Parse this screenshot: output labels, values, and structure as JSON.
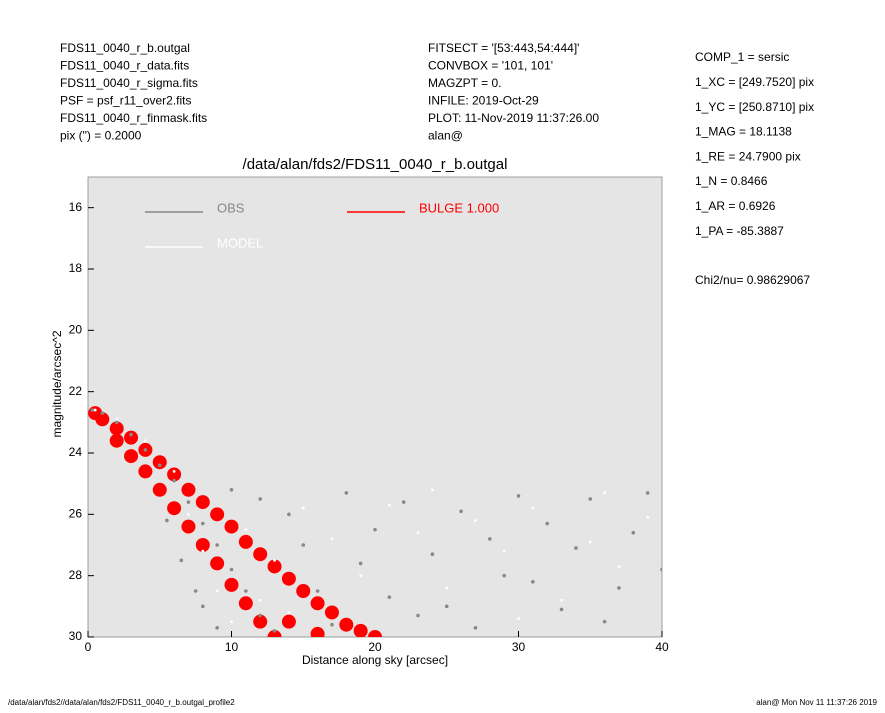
{
  "header": {
    "left": [
      "FDS11_0040_r_b.outgal",
      "FDS11_0040_r_data.fits",
      "FDS11_0040_r_sigma.fits",
      "PSF    = psf_r11_over2.fits",
      "FDS11_0040_r_finmask.fits",
      "pix (\") =  0.2000"
    ],
    "middle": [
      "FITSECT = '[53:443,54:444]'",
      "CONVBOX = '101, 101'",
      "MAGZPT  =              0.",
      "INFILE: 2019-Oct-29",
      "PLOT: 11-Nov-2019 11:37:26.00",
      "alan@"
    ],
    "right": [
      "COMP_1  = sersic",
      "1_XC    = [249.7520] pix",
      "1_YC    = [250.8710] pix",
      "1_MAG   = 18.1138",
      "1_RE    = 24.7900 pix",
      "1_N     = 0.8466",
      "1_AR    = 0.6926",
      "1_PA    = -85.3887"
    ],
    "chi2": "Chi2/nu=     0.98629067"
  },
  "footer": {
    "left": "/data/alan/fds2//data/alan/fds2/FDS11_0040_r_b.outgal_profile2",
    "right": "alan@  Mon Nov 11 11:37:26 2019"
  },
  "chart_data": {
    "type": "scatter",
    "title": "/data/alan/fds2/FDS11_0040_r_b.outgal",
    "x_label": "Distance along sky [arcsec]",
    "y_label": "magnitude/arcsec^2",
    "xlim": [
      0,
      40
    ],
    "ylim": [
      30,
      15
    ],
    "xticks": [
      0,
      10,
      20,
      30,
      40
    ],
    "yticks": [
      16,
      18,
      20,
      22,
      24,
      26,
      28,
      30
    ],
    "background": "#e5e5e5",
    "series": [
      {
        "name": "OBS",
        "color": "#888888",
        "x": [
          0.3,
          1,
          2,
          3,
          4,
          5,
          6,
          7,
          8,
          9,
          10,
          11,
          12,
          6.5,
          8,
          10,
          12,
          14,
          15,
          16,
          18,
          20,
          22,
          24,
          25,
          26,
          28,
          30,
          31,
          32,
          34,
          35,
          36,
          38,
          39,
          40,
          13,
          17,
          21,
          27,
          33,
          37,
          19,
          23,
          29,
          5.5,
          7.5,
          9
        ],
        "values": [
          22.6,
          22.7,
          23.0,
          23.4,
          23.9,
          24.4,
          24.9,
          25.6,
          26.3,
          27.0,
          27.8,
          28.5,
          29.3,
          27.5,
          29,
          25.2,
          25.5,
          26,
          27,
          28.5,
          25.3,
          26.5,
          25.6,
          27.3,
          29,
          25.9,
          26.8,
          25.4,
          28.2,
          26.3,
          27.1,
          25.5,
          29.5,
          26.6,
          25.3,
          27.8,
          29.8,
          29.6,
          28.7,
          29.7,
          29.1,
          28.4,
          27.6,
          29.3,
          28,
          26.2,
          28.5,
          29.7
        ]
      },
      {
        "name": "MODEL",
        "color": "#ffffff",
        "x": [
          0.5,
          2,
          4,
          6,
          7,
          8,
          9,
          10,
          11,
          13,
          15,
          17,
          19,
          21,
          23,
          25,
          27,
          29,
          31,
          33,
          35,
          37,
          39,
          12,
          14,
          24,
          30,
          36
        ],
        "values": [
          22.6,
          22.9,
          23.6,
          24.6,
          26,
          27.2,
          28.5,
          29.5,
          26.5,
          27.5,
          25.8,
          26.8,
          28,
          25.7,
          26.6,
          28.4,
          26.2,
          27.2,
          25.8,
          28.8,
          26.9,
          27.7,
          26.1,
          28.8,
          29.2,
          25.2,
          29.4,
          25.3
        ]
      },
      {
        "name": "BULGE  1.000",
        "color": "#ff0000",
        "x": [
          0.5,
          1,
          2,
          2,
          3,
          3,
          4,
          4,
          5,
          5,
          6,
          6,
          7,
          7,
          8,
          8,
          9,
          9,
          10,
          10,
          11,
          11,
          12,
          12,
          13,
          13,
          14,
          15,
          16,
          17,
          18,
          19,
          20,
          14,
          16
        ],
        "values": [
          22.7,
          22.9,
          23.2,
          23.6,
          23.5,
          24.1,
          23.9,
          24.6,
          24.3,
          25.2,
          24.7,
          25.8,
          25.2,
          26.4,
          25.6,
          27,
          26,
          27.6,
          26.4,
          28.3,
          26.9,
          28.9,
          27.3,
          29.5,
          27.7,
          30,
          28.1,
          28.5,
          28.9,
          29.2,
          29.6,
          29.8,
          30,
          29.5,
          29.9
        ]
      }
    ]
  }
}
